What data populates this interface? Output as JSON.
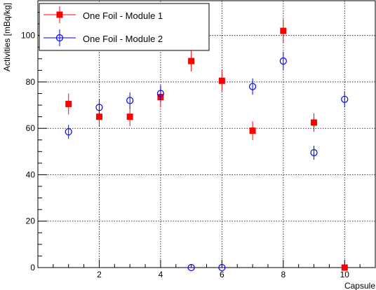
{
  "chart_data": {
    "type": "scatter",
    "xlabel": "Capsule",
    "ylabel": "Activities [mBq/kg]",
    "xlim": [
      0,
      11
    ],
    "ylim": [
      0,
      115
    ],
    "x_ticks": [
      2,
      4,
      6,
      8,
      10
    ],
    "y_ticks": [
      0,
      20,
      40,
      60,
      80,
      100
    ],
    "x_tick_labels": [
      "2",
      "4",
      "6",
      "8",
      "10"
    ],
    "y_tick_labels": [
      "0",
      "20",
      "40",
      "60",
      "80",
      "100"
    ],
    "grid": true,
    "legend_position": "top-left",
    "series": [
      {
        "name": "One Foil - Module 1",
        "marker": "filled-square",
        "color": "#ff0000",
        "x": [
          1,
          2,
          3,
          4,
          5,
          6,
          7,
          8,
          9,
          10
        ],
        "y": [
          70.5,
          65,
          65,
          73.5,
          89,
          80.5,
          59,
          102,
          62.5,
          0
        ],
        "yerr": [
          4.5,
          4,
          4,
          4.5,
          4.5,
          4.5,
          4,
          5,
          4,
          0
        ]
      },
      {
        "name": "One Foil - Module 2",
        "marker": "open-circle",
        "color": "#0000ff",
        "x": [
          1,
          2,
          3,
          4,
          5,
          6,
          7,
          8,
          9,
          10
        ],
        "y": [
          58.5,
          69,
          72,
          75,
          0,
          0,
          78,
          89,
          49.5,
          72.5
        ],
        "yerr": [
          3,
          3.5,
          3.5,
          3.5,
          0,
          0,
          3.5,
          4,
          3,
          3.5
        ]
      }
    ]
  }
}
